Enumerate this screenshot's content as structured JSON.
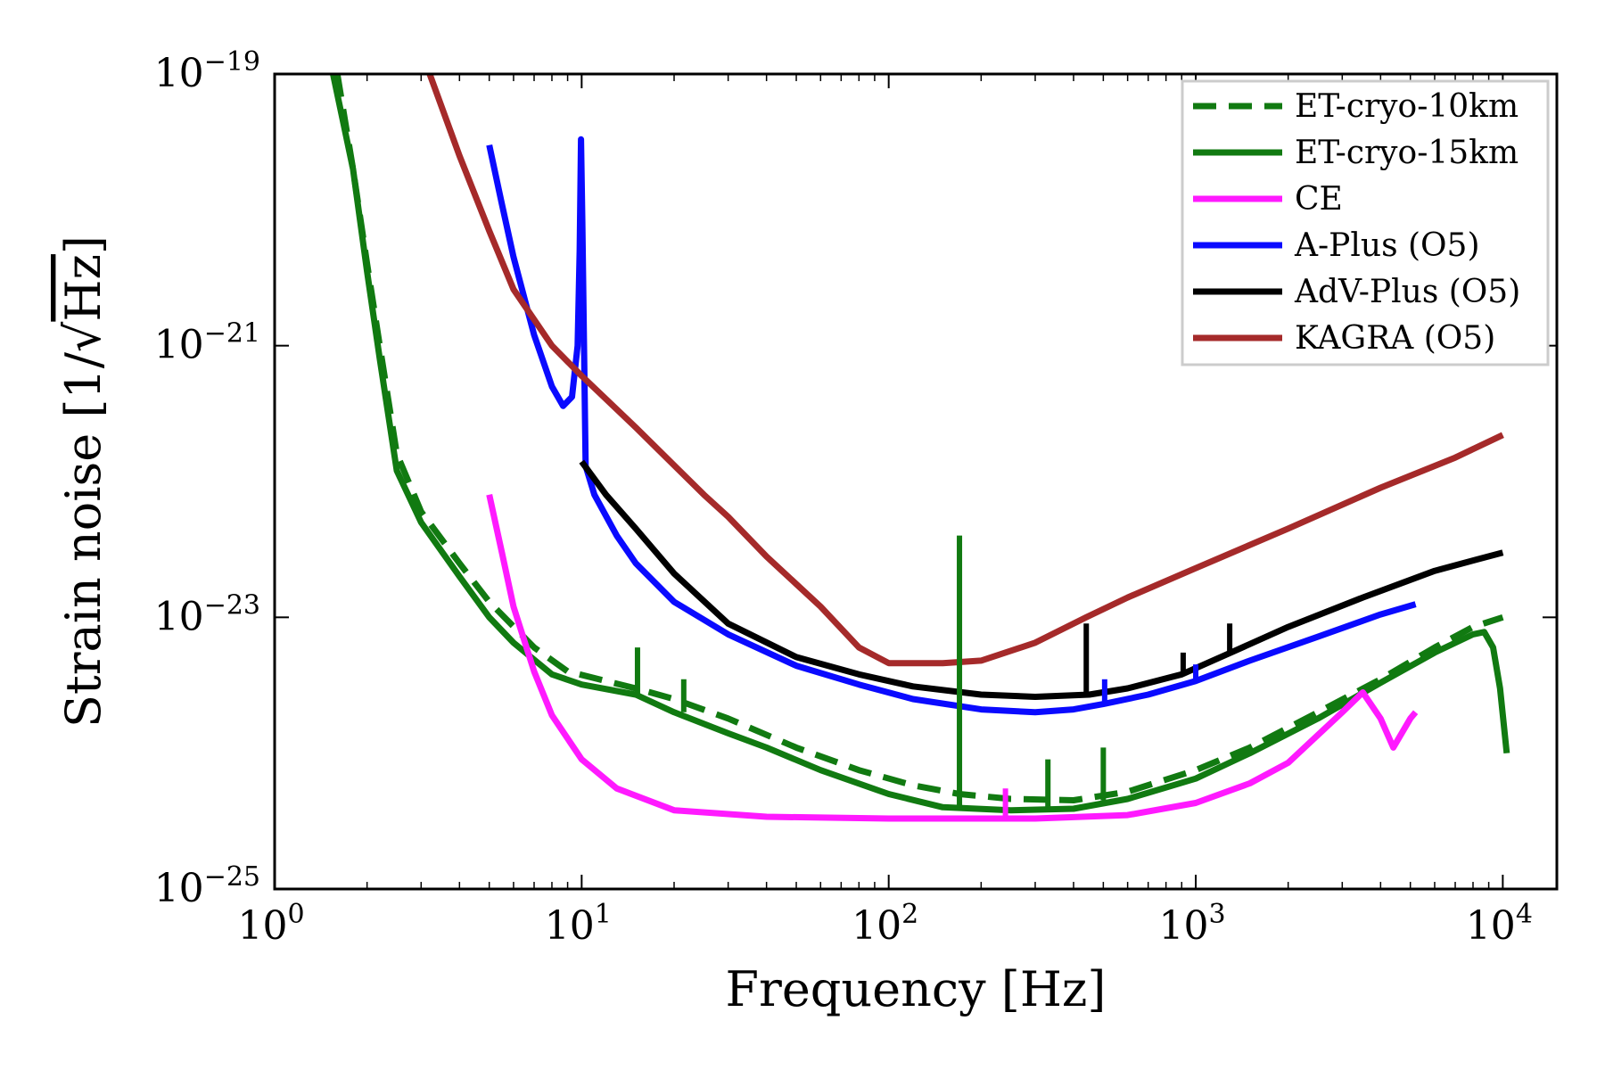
{
  "chart_data": {
    "type": "line",
    "xlabel": "Frequency [Hz]",
    "ylabel_prefix": "Strain noise [1/",
    "ylabel_root": "Hz",
    "ylabel_suffix": "]",
    "xscale": "log",
    "yscale": "log",
    "xlim": [
      1,
      15000
    ],
    "ylim": [
      1e-25,
      1e-19
    ],
    "grid": false,
    "legend_position": "top-right",
    "x_ticks": [
      {
        "value": 1,
        "base": "10",
        "exp": "0"
      },
      {
        "value": 10,
        "base": "10",
        "exp": "1"
      },
      {
        "value": 100,
        "base": "10",
        "exp": "2"
      },
      {
        "value": 1000,
        "base": "10",
        "exp": "3"
      },
      {
        "value": 10000,
        "base": "10",
        "exp": "4"
      }
    ],
    "y_ticks": [
      {
        "value": 1e-25,
        "base": "10",
        "exp": "−25"
      },
      {
        "value": 1e-23,
        "base": "10",
        "exp": "−23"
      },
      {
        "value": 1e-21,
        "base": "10",
        "exp": "−21"
      },
      {
        "value": 1e-19,
        "base": "10",
        "exp": "−19"
      }
    ],
    "series": [
      {
        "name": "ET-cryo-10km",
        "color": "#117a11",
        "style": "dashed",
        "points": [
          [
            1.6,
            1e-19
          ],
          [
            1.8,
            2e-20
          ],
          [
            2.0,
            4e-21
          ],
          [
            2.2,
            1e-21
          ],
          [
            2.5,
            1.6e-22
          ],
          [
            3,
            6e-23
          ],
          [
            4,
            2.5e-23
          ],
          [
            5,
            1.3e-23
          ],
          [
            7,
            6e-24
          ],
          [
            9,
            4e-24
          ],
          [
            12,
            3.4e-24
          ],
          [
            15,
            3e-24
          ],
          [
            20,
            2.5e-24
          ],
          [
            30,
            1.8e-24
          ],
          [
            50,
            1.1e-24
          ],
          [
            80,
            7.5e-25
          ],
          [
            120,
            5.8e-25
          ],
          [
            170,
            5e-25
          ],
          [
            250,
            4.6e-25
          ],
          [
            400,
            4.5e-25
          ],
          [
            600,
            5.2e-25
          ],
          [
            1000,
            7.5e-25
          ],
          [
            1500,
            1.1e-24
          ],
          [
            2500,
            2e-24
          ],
          [
            4000,
            3.5e-24
          ],
          [
            6000,
            6e-24
          ],
          [
            8000,
            8.5e-24
          ],
          [
            10000,
            1e-23
          ]
        ]
      },
      {
        "name": "ET-cryo-15km",
        "color": "#117a11",
        "style": "solid",
        "points": [
          [
            1.55,
            1e-19
          ],
          [
            1.8,
            2e-20
          ],
          [
            2.0,
            3.5e-21
          ],
          [
            2.2,
            8e-22
          ],
          [
            2.5,
            1.2e-22
          ],
          [
            3,
            5e-23
          ],
          [
            4,
            2e-23
          ],
          [
            5,
            1e-23
          ],
          [
            6,
            6.5e-24
          ],
          [
            8,
            3.8e-24
          ],
          [
            10,
            3.2e-24
          ],
          [
            15,
            2.7e-24
          ],
          [
            20,
            2e-24
          ],
          [
            30,
            1.4e-24
          ],
          [
            40,
            1.1e-24
          ],
          [
            60,
            7.5e-25
          ],
          [
            100,
            5e-25
          ],
          [
            150,
            4e-25
          ],
          [
            250,
            3.8e-25
          ],
          [
            400,
            3.9e-25
          ],
          [
            600,
            4.6e-25
          ],
          [
            1000,
            6.5e-25
          ],
          [
            1500,
            1e-24
          ],
          [
            2500,
            1.8e-24
          ],
          [
            4000,
            3.3e-24
          ],
          [
            6000,
            5.5e-24
          ],
          [
            8000,
            7.5e-24
          ],
          [
            8700,
            7.8e-24
          ],
          [
            9300,
            6e-24
          ],
          [
            9800,
            3e-24
          ],
          [
            10300,
            1e-24
          ]
        ]
      },
      {
        "name": "CE",
        "color": "#ff1aff",
        "style": "solid",
        "points": [
          [
            5,
            8e-23
          ],
          [
            5.5,
            3e-23
          ],
          [
            6,
            1.2e-23
          ],
          [
            7,
            4e-24
          ],
          [
            8,
            1.9e-24
          ],
          [
            10,
            9e-25
          ],
          [
            13,
            5.5e-25
          ],
          [
            20,
            3.8e-25
          ],
          [
            40,
            3.4e-25
          ],
          [
            100,
            3.3e-25
          ],
          [
            300,
            3.3e-25
          ],
          [
            600,
            3.5e-25
          ],
          [
            1000,
            4.3e-25
          ],
          [
            1500,
            6e-25
          ],
          [
            2000,
            8.5e-25
          ],
          [
            3000,
            2e-24
          ],
          [
            3500,
            2.8e-24
          ],
          [
            4000,
            1.8e-24
          ],
          [
            4400,
            1.1e-24
          ],
          [
            5000,
            1.8e-24
          ],
          [
            5200,
            2e-24
          ]
        ]
      },
      {
        "name": "A-Plus (O5)",
        "color": "#0a0aff",
        "style": "solid",
        "points": [
          [
            5,
            3e-20
          ],
          [
            5.5,
            1.1e-20
          ],
          [
            6,
            4.5e-21
          ],
          [
            7,
            1.2e-21
          ],
          [
            8,
            5e-22
          ],
          [
            8.7,
            3.6e-22
          ],
          [
            9.3,
            4.2e-22
          ],
          [
            9.7,
            1e-21
          ],
          [
            9.85,
            5e-21
          ],
          [
            9.95,
            3.3e-20
          ],
          [
            10.05,
            8e-21
          ],
          [
            10.3,
            1.3e-22
          ],
          [
            11,
            8e-23
          ],
          [
            13,
            4e-23
          ],
          [
            15,
            2.5e-23
          ],
          [
            20,
            1.3e-23
          ],
          [
            30,
            7.5e-24
          ],
          [
            50,
            4.4e-24
          ],
          [
            80,
            3.2e-24
          ],
          [
            120,
            2.5e-24
          ],
          [
            200,
            2.1e-24
          ],
          [
            300,
            2e-24
          ],
          [
            400,
            2.1e-24
          ],
          [
            500,
            2.3e-24
          ],
          [
            700,
            2.7e-24
          ],
          [
            1000,
            3.4e-24
          ],
          [
            1500,
            4.8e-24
          ],
          [
            2500,
            7.2e-24
          ],
          [
            4000,
            1.05e-23
          ],
          [
            5200,
            1.25e-23
          ]
        ]
      },
      {
        "name": "AdV-Plus (O5)",
        "color": "#000000",
        "style": "solid",
        "points": [
          [
            10,
            1.4e-22
          ],
          [
            12,
            8e-23
          ],
          [
            15,
            4.5e-23
          ],
          [
            20,
            2.1e-23
          ],
          [
            30,
            9e-24
          ],
          [
            50,
            5.1e-24
          ],
          [
            80,
            3.8e-24
          ],
          [
            120,
            3.1e-24
          ],
          [
            200,
            2.7e-24
          ],
          [
            300,
            2.6e-24
          ],
          [
            450,
            2.7e-24
          ],
          [
            600,
            3e-24
          ],
          [
            900,
            3.8e-24
          ],
          [
            1300,
            5.5e-24
          ],
          [
            2000,
            8.5e-24
          ],
          [
            3500,
            1.4e-23
          ],
          [
            6000,
            2.2e-23
          ],
          [
            10000,
            3e-23
          ]
        ]
      },
      {
        "name": "KAGRA (O5)",
        "color": "#a52a2a",
        "style": "solid",
        "points": [
          [
            3.2,
            1e-19
          ],
          [
            4,
            2.5e-20
          ],
          [
            5,
            7e-21
          ],
          [
            6,
            2.6e-21
          ],
          [
            8,
            1e-21
          ],
          [
            10,
            6e-22
          ],
          [
            15,
            2.5e-22
          ],
          [
            25,
            8e-23
          ],
          [
            30,
            5.5e-23
          ],
          [
            40,
            2.8e-23
          ],
          [
            60,
            1.2e-23
          ],
          [
            80,
            6e-24
          ],
          [
            100,
            4.6e-24
          ],
          [
            150,
            4.6e-24
          ],
          [
            200,
            4.8e-24
          ],
          [
            300,
            6.5e-24
          ],
          [
            440,
            1e-23
          ],
          [
            600,
            1.4e-23
          ],
          [
            1000,
            2.3e-23
          ],
          [
            2000,
            4.5e-23
          ],
          [
            4000,
            9e-23
          ],
          [
            7000,
            1.5e-22
          ],
          [
            10000,
            2.2e-22
          ]
        ]
      }
    ],
    "spikes": [
      {
        "color": "#117a11",
        "x": 170,
        "from": 4e-25,
        "to": 4e-23
      },
      {
        "color": "#117a11",
        "x": 15.2,
        "from": 2.6e-24,
        "to": 6e-24
      },
      {
        "color": "#117a11",
        "x": 21.5,
        "from": 2e-24,
        "to": 3.5e-24
      },
      {
        "color": "#117a11",
        "x": 330,
        "from": 4e-25,
        "to": 9e-25
      },
      {
        "color": "#117a11",
        "x": 500,
        "from": 4.5e-25,
        "to": 1.1e-24
      },
      {
        "color": "#ff1aff",
        "x": 240,
        "from": 3.3e-25,
        "to": 5.5e-25
      },
      {
        "color": "#0a0aff",
        "x": 505,
        "from": 2.3e-24,
        "to": 3.5e-24
      },
      {
        "color": "#0a0aff",
        "x": 1000,
        "from": 3.4e-24,
        "to": 4.5e-24
      },
      {
        "color": "#000000",
        "x": 440,
        "from": 2.7e-24,
        "to": 9e-24
      },
      {
        "color": "#000000",
        "x": 910,
        "from": 3.8e-24,
        "to": 5.5e-24
      },
      {
        "color": "#000000",
        "x": 1290,
        "from": 5.5e-24,
        "to": 9e-24
      }
    ]
  }
}
